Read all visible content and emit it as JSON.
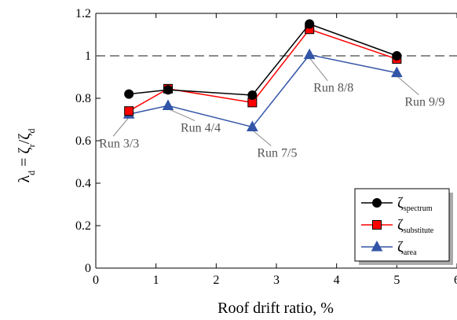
{
  "chart_data": {
    "type": "line",
    "xlabel": "Roof drift ratio, %",
    "ylabel": "λd = ζr / ζd",
    "xlim": [
      0,
      6
    ],
    "ylim": [
      0,
      1.2
    ],
    "xticks": [
      "0",
      "1",
      "2",
      "3",
      "4",
      "5",
      "6"
    ],
    "yticks": [
      "0",
      "0.2",
      "0.4",
      "0.6",
      "0.8",
      "1",
      "1.2"
    ],
    "reference_line": {
      "y": 1,
      "style": "dashed"
    },
    "grid": false,
    "legend_position": "bottom-right",
    "series": [
      {
        "name": "ζspectrum",
        "symbol": "ζ",
        "subscript": "spectrum",
        "color": "#000000",
        "marker": "circle",
        "x": [
          0.55,
          1.2,
          2.6,
          3.55,
          5.0
        ],
        "y": [
          0.82,
          0.84,
          0.815,
          1.15,
          1.0
        ]
      },
      {
        "name": "ζsubstitute",
        "symbol": "ζ",
        "subscript": "substitute",
        "color": "#ff0000",
        "marker": "square",
        "x": [
          0.55,
          1.2,
          2.6,
          3.55,
          5.0
        ],
        "y": [
          0.74,
          0.845,
          0.78,
          1.125,
          0.985
        ]
      },
      {
        "name": "ζarea",
        "symbol": "ζ",
        "subscript": "area",
        "color": "#3355a8",
        "marker": "triangle",
        "x": [
          0.55,
          1.2,
          2.6,
          3.55,
          5.0
        ],
        "y": [
          0.725,
          0.765,
          0.665,
          1.005,
          0.92
        ]
      }
    ],
    "annotations": [
      {
        "text": "Run 3/3",
        "x": 0.55,
        "y": 0.725
      },
      {
        "text": "Run 4/4",
        "x": 1.2,
        "y": 0.765
      },
      {
        "text": "Run 7/5",
        "x": 2.6,
        "y": 0.665
      },
      {
        "text": "Run 8/8",
        "x": 3.55,
        "y": 1.005
      },
      {
        "text": "Run 9/9",
        "x": 5.0,
        "y": 0.92
      }
    ]
  },
  "colors": {
    "axis": "#000000",
    "annotation": "#555555",
    "reference_line": "#666666",
    "legend_shadow": "#aaaaaa"
  }
}
